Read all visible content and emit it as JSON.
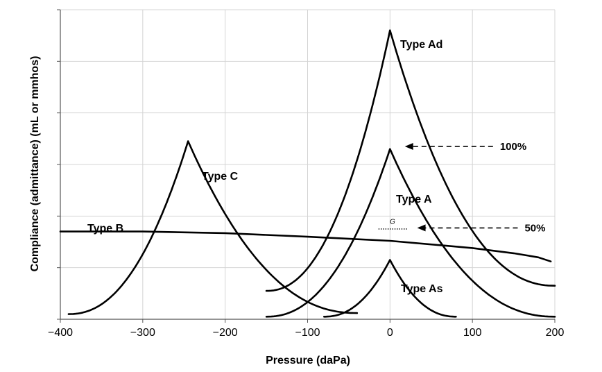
{
  "chart_data": {
    "type": "line",
    "title": "",
    "xlabel": "Pressure (daPa)",
    "ylabel": "Compliance (admittance) (mL or mmhos)",
    "xlim": [
      -400,
      200
    ],
    "ylim": [
      0,
      6
    ],
    "xticks": [
      -400,
      -300,
      -200,
      -100,
      0,
      100,
      200
    ],
    "xtick_labels": [
      "−400",
      "−300",
      "−200",
      "−100",
      "0",
      "100",
      "200"
    ],
    "yticks": [
      0,
      1,
      2,
      3,
      4,
      5,
      6
    ],
    "ytick_labels_shown": false,
    "grid": true,
    "legend": "none",
    "series": [
      {
        "name": "Type Ad",
        "peak_x": 0,
        "peak_y": 5.6,
        "x_start": -150,
        "x_end": 200,
        "y_start": 0.55,
        "y_end": 0.65
      },
      {
        "name": "Type A",
        "peak_x": 0,
        "peak_y": 3.3,
        "x_start": -150,
        "x_end": 200,
        "y_start": 0.05,
        "y_end": 0.05
      },
      {
        "name": "Type As",
        "peak_x": 0,
        "peak_y": 1.15,
        "x_start": -80,
        "x_end": 80,
        "y_start": 0.05,
        "y_end": 0.05
      },
      {
        "name": "Type C",
        "peak_x": -245,
        "peak_y": 3.45,
        "x_start": -390,
        "x_end": -40,
        "y_start": 0.1,
        "y_end": 0.12
      },
      {
        "name": "Type B",
        "x": [
          -400,
          -300,
          -200,
          -100,
          0,
          100,
          150,
          180,
          195
        ],
        "y": [
          1.7,
          1.7,
          1.67,
          1.6,
          1.52,
          1.38,
          1.28,
          1.2,
          1.12
        ]
      }
    ],
    "annotations": [
      {
        "text": "100%",
        "x": 130,
        "y": 3.35,
        "arrow_to": [
          18,
          3.35
        ]
      },
      {
        "text": "50%",
        "x": 160,
        "y": 1.77,
        "arrow_to": [
          33,
          1.77
        ]
      },
      {
        "text": "G",
        "x": 3,
        "y": 1.85,
        "line_from": -14,
        "line_to": 22
      }
    ]
  }
}
